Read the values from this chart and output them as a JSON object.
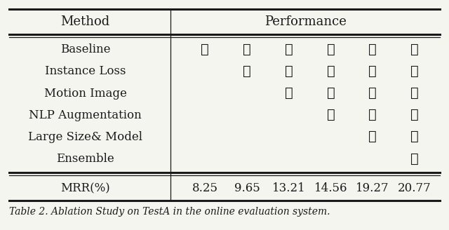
{
  "methods": [
    "Baseline",
    "Instance Loss",
    "Motion Image",
    "NLP Augmentation",
    "Large Size& Model",
    "Ensemble"
  ],
  "mrr_values": [
    "8.25",
    "9.65",
    "13.21",
    "14.56",
    "19.27",
    "20.77"
  ],
  "checks": [
    [
      true,
      true,
      true,
      true,
      true,
      true
    ],
    [
      false,
      true,
      true,
      true,
      true,
      true
    ],
    [
      false,
      false,
      true,
      true,
      true,
      true
    ],
    [
      false,
      false,
      false,
      true,
      true,
      true
    ],
    [
      false,
      false,
      false,
      false,
      true,
      true
    ],
    [
      false,
      false,
      false,
      false,
      false,
      true
    ]
  ],
  "col_header_method": "Method",
  "col_header_perf": "Performance",
  "mrr_label": "MRR(%)",
  "caption": "Table 2. Ablation Study on TestA in the online evaluation system.",
  "bg_color": "#f5f5f0",
  "text_color": "#1a1a1a",
  "header_fontsize": 13,
  "body_fontsize": 12,
  "caption_fontsize": 10,
  "check_fontsize": 14,
  "mrr_fontsize": 12,
  "fig_width": 6.4,
  "fig_height": 3.28,
  "dpi": 100
}
